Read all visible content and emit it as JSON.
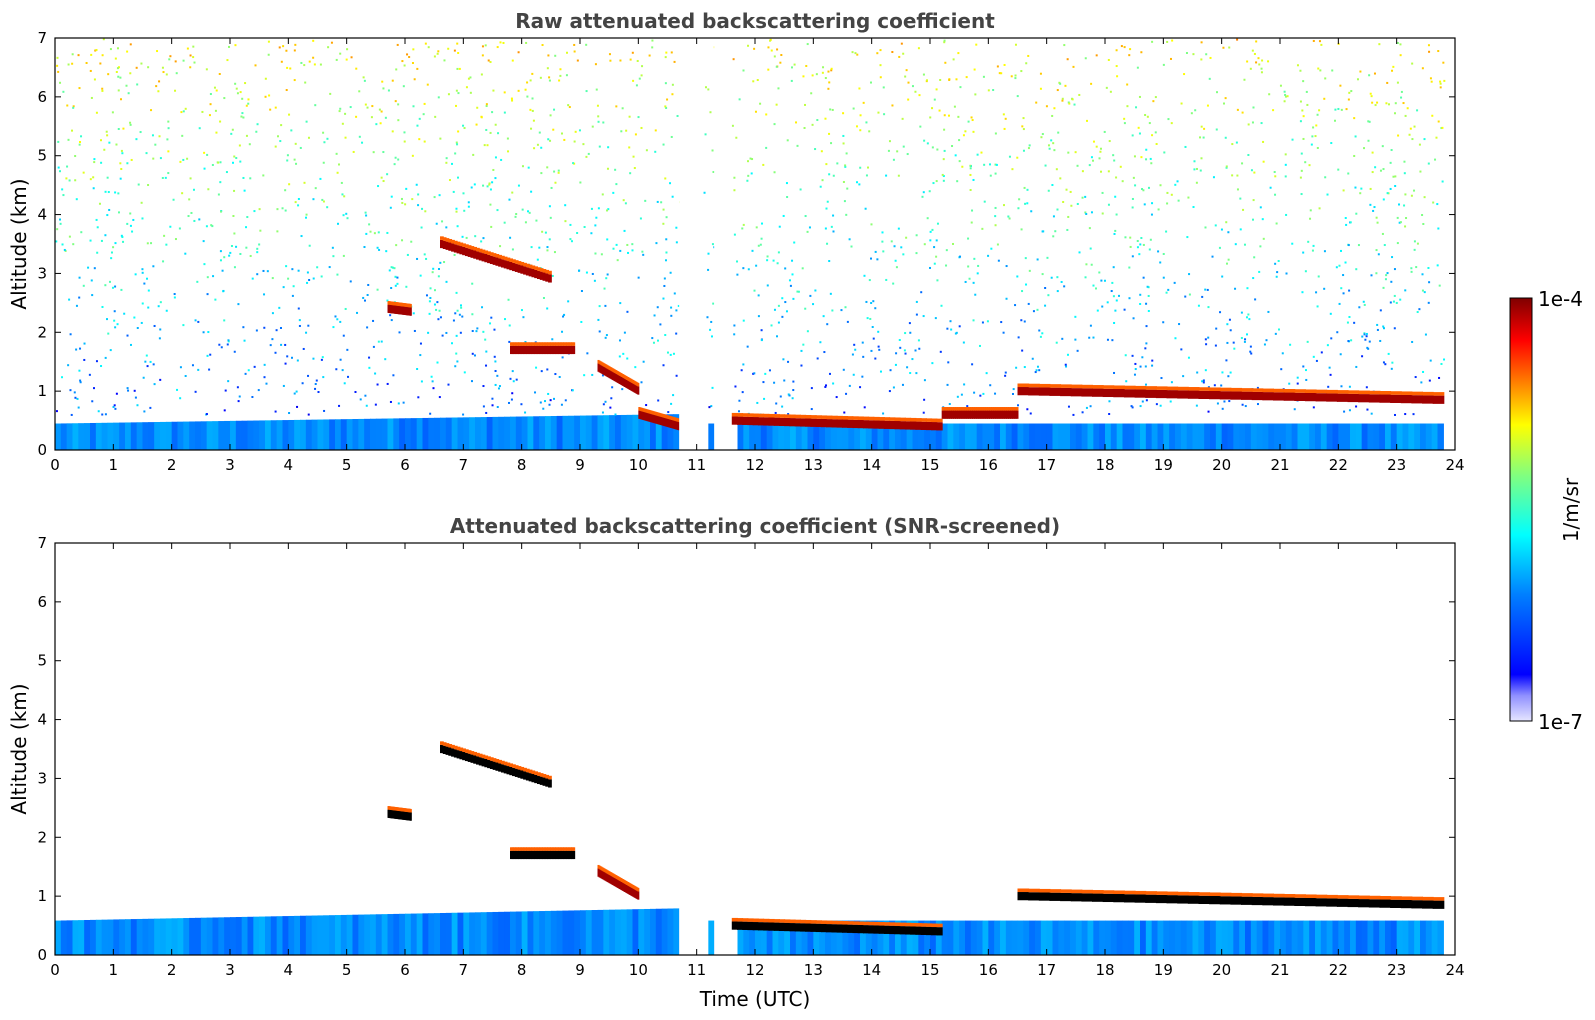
{
  "colors": {
    "jet": [
      "#000080",
      "#0000ff",
      "#0080ff",
      "#00ffff",
      "#80ff80",
      "#ffff00",
      "#ff8000",
      "#ff0000",
      "#800000"
    ],
    "low_tint": "#e6e6ff",
    "frame": "#000000"
  },
  "colorbar": {
    "label": "1/m/sr",
    "top_label": "1e-4",
    "bottom_label": "1e-7",
    "scale": "log"
  },
  "chart_data": [
    {
      "type": "heatmap",
      "title": "Raw attenuated backscattering coefficient",
      "xlabel": "",
      "ylabel": "Altitude (km)",
      "xlim": [
        0,
        24
      ],
      "ylim": [
        0,
        7
      ],
      "x_ticks": [
        "0",
        "1",
        "2",
        "3",
        "4",
        "5",
        "6",
        "7",
        "8",
        "9",
        "10",
        "11",
        "12",
        "13",
        "14",
        "15",
        "16",
        "17",
        "18",
        "19",
        "20",
        "21",
        "22",
        "23",
        "24"
      ],
      "y_ticks": [
        "0",
        "1",
        "2",
        "3",
        "4",
        "5",
        "6",
        "7"
      ],
      "data_gaps_hours": [
        [
          10.7,
          11.1
        ],
        [
          11.3,
          11.6
        ]
      ],
      "cloud_layers": [
        {
          "t": [
            6.6,
            8.5
          ],
          "alt": [
            3.5,
            2.9
          ],
          "level": "high"
        },
        {
          "t": [
            5.7,
            6.1
          ],
          "alt": [
            2.4,
            2.35
          ],
          "level": "high"
        },
        {
          "t": [
            7.8,
            8.9
          ],
          "alt": [
            1.7,
            1.7
          ],
          "level": "high"
        },
        {
          "t": [
            9.3,
            10.0
          ],
          "alt": [
            1.4,
            1.0
          ],
          "level": "high"
        },
        {
          "t": [
            10.0,
            10.7
          ],
          "alt": [
            0.6,
            0.4
          ],
          "level": "high"
        },
        {
          "t": [
            11.6,
            15.2
          ],
          "alt": [
            0.5,
            0.4
          ],
          "level": "high"
        },
        {
          "t": [
            15.2,
            16.5
          ],
          "alt": [
            0.6,
            0.6
          ],
          "level": "high"
        },
        {
          "t": [
            16.5,
            23.8
          ],
          "alt": [
            1.0,
            0.85
          ],
          "level": "high"
        }
      ]
    },
    {
      "type": "heatmap",
      "title": "Attenuated backscattering coefficient (SNR-screened)",
      "xlabel": "Time (UTC)",
      "ylabel": "Altitude (km)",
      "xlim": [
        0,
        24
      ],
      "ylim": [
        0,
        7
      ],
      "x_ticks": [
        "0",
        "1",
        "2",
        "3",
        "4",
        "5",
        "6",
        "7",
        "8",
        "9",
        "10",
        "11",
        "12",
        "13",
        "14",
        "15",
        "16",
        "17",
        "18",
        "19",
        "20",
        "21",
        "22",
        "23",
        "24"
      ],
      "y_ticks": [
        "0",
        "1",
        "2",
        "3",
        "4",
        "5",
        "6",
        "7"
      ],
      "data_gaps_hours": [
        [
          10.7,
          11.1
        ],
        [
          11.3,
          11.6
        ]
      ],
      "cloud_layers": [
        {
          "t": [
            6.6,
            8.5
          ],
          "alt": [
            3.5,
            2.9
          ],
          "level": "saturated"
        },
        {
          "t": [
            5.7,
            6.1
          ],
          "alt": [
            2.4,
            2.35
          ],
          "level": "saturated"
        },
        {
          "t": [
            7.8,
            8.9
          ],
          "alt": [
            1.7,
            1.7
          ],
          "level": "saturated"
        },
        {
          "t": [
            9.3,
            10.0
          ],
          "alt": [
            1.4,
            1.0
          ],
          "level": "high"
        },
        {
          "t": [
            11.6,
            15.2
          ],
          "alt": [
            0.5,
            0.4
          ],
          "level": "saturated"
        },
        {
          "t": [
            16.5,
            23.8
          ],
          "alt": [
            1.0,
            0.85
          ],
          "level": "saturated"
        }
      ]
    }
  ]
}
